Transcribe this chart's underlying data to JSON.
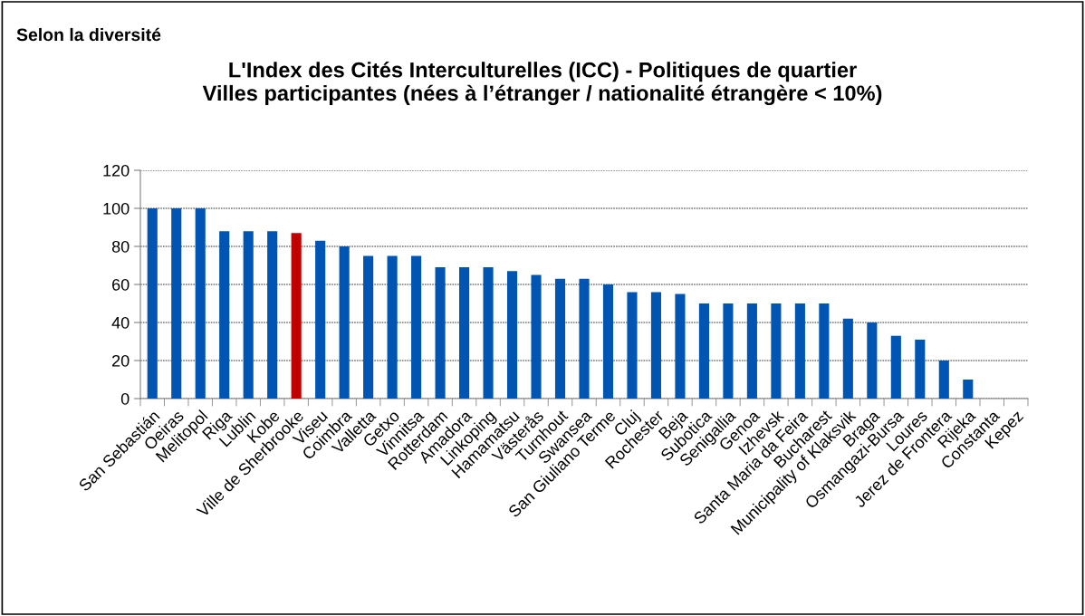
{
  "chart_data": {
    "type": "bar",
    "subtitle": "Selon la diversité",
    "title": "L'Index des Cités Interculturelles (ICC) - Politiques de quartier\nVilles participantes (nées à l’étranger / nationalité étrangère < 10%)",
    "categories": [
      "San Sebastián",
      "Oeiras",
      "Melitopol",
      "Riga",
      "Lublin",
      "Kobe",
      "Ville de Sherbrooke",
      "Viseu",
      "Coimbra",
      "Valletta",
      "Getxo",
      "Vinnitsa",
      "Rotterdam",
      "Amadora",
      "Linkoping",
      "Hamamatsu",
      "Västerås",
      "Turnhout",
      "Swansea",
      "San Giuliano Terme",
      "Cluj",
      "Rochester",
      "Beja",
      "Subotica",
      "Senigallia",
      "Genoa",
      "Izhevsk",
      "Santa Maria da Feira",
      "Bucharest",
      "Municipality of Klaksvik",
      "Braga",
      "Osmangazi-Bursa",
      "Loures",
      "Jerez de Frontera",
      "Rijeka",
      "Constanta",
      "Kepez"
    ],
    "values": [
      100,
      100,
      100,
      88,
      88,
      88,
      87,
      83,
      80,
      75,
      75,
      75,
      69,
      69,
      69,
      67,
      65,
      63,
      63,
      60,
      56,
      56,
      55,
      50,
      50,
      50,
      50,
      50,
      50,
      42,
      40,
      33,
      31,
      20,
      10,
      0,
      0
    ],
    "colors": [
      "#0055b3",
      "#0055b3",
      "#0055b3",
      "#0055b3",
      "#0055b3",
      "#0055b3",
      "#c00000",
      "#0055b3",
      "#0055b3",
      "#0055b3",
      "#0055b3",
      "#0055b3",
      "#0055b3",
      "#0055b3",
      "#0055b3",
      "#0055b3",
      "#0055b3",
      "#0055b3",
      "#0055b3",
      "#0055b3",
      "#0055b3",
      "#0055b3",
      "#0055b3",
      "#0055b3",
      "#0055b3",
      "#0055b3",
      "#0055b3",
      "#0055b3",
      "#0055b3",
      "#0055b3",
      "#0055b3",
      "#0055b3",
      "#0055b3",
      "#0055b3",
      "#0055b3",
      "#0055b3",
      "#0055b3"
    ],
    "ylim": [
      0,
      120
    ],
    "yticks": [
      0,
      20,
      40,
      60,
      80,
      100,
      120
    ],
    "grid": "y"
  }
}
